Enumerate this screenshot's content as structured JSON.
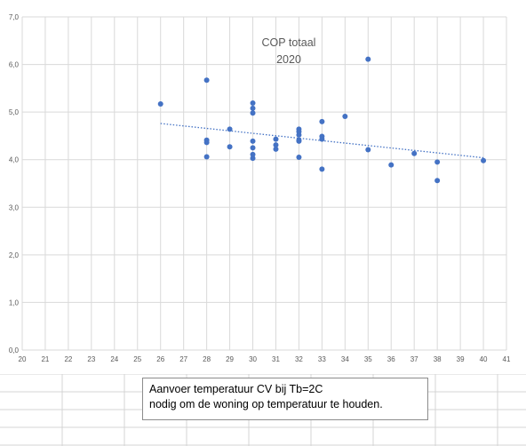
{
  "colors": {
    "marker": "#4472c4",
    "trendline": "#4472c4",
    "gridline": "#d9d9d9",
    "axis_text": "#595959",
    "sheet_grid": "#d4d4d4"
  },
  "chart_data": {
    "type": "scatter",
    "title": "COP totaal",
    "subtitle": "2020",
    "xlim": [
      20,
      41
    ],
    "ylim": [
      0,
      7
    ],
    "x_ticks": [
      "20",
      "21",
      "22",
      "23",
      "24",
      "25",
      "26",
      "27",
      "28",
      "29",
      "30",
      "31",
      "32",
      "33",
      "34",
      "35",
      "36",
      "37",
      "38",
      "39",
      "40",
      "41"
    ],
    "y_ticks": [
      "0,0",
      "1,0",
      "2,0",
      "3,0",
      "4,0",
      "5,0",
      "6,0",
      "7,0"
    ],
    "grid": true,
    "legend": "none",
    "series": [
      {
        "marker": "circle",
        "points": [
          [
            26,
            5.17
          ],
          [
            28,
            5.67
          ],
          [
            28,
            4.41
          ],
          [
            28,
            4.36
          ],
          [
            28,
            4.06
          ],
          [
            29,
            4.64
          ],
          [
            29,
            4.27
          ],
          [
            30,
            5.19
          ],
          [
            30,
            5.08
          ],
          [
            30,
            4.98
          ],
          [
            30,
            4.39
          ],
          [
            30,
            4.25
          ],
          [
            30,
            4.11
          ],
          [
            30,
            4.03
          ],
          [
            31,
            4.43
          ],
          [
            31,
            4.31
          ],
          [
            31,
            4.22
          ],
          [
            32,
            4.64
          ],
          [
            32,
            4.59
          ],
          [
            32,
            4.52
          ],
          [
            32,
            4.41
          ],
          [
            32,
            4.39
          ],
          [
            32,
            4.05
          ],
          [
            33,
            4.8
          ],
          [
            33,
            4.49
          ],
          [
            33,
            4.43
          ],
          [
            33,
            3.8
          ],
          [
            34,
            4.91
          ],
          [
            35,
            6.11
          ],
          [
            35,
            4.21
          ],
          [
            36,
            3.89
          ],
          [
            37,
            4.13
          ],
          [
            38,
            3.95
          ],
          [
            38,
            3.56
          ],
          [
            40,
            3.98
          ]
        ]
      }
    ],
    "trendline": {
      "type": "linear",
      "style": "dotted",
      "x_range": [
        26,
        40
      ],
      "y_start": 4.76,
      "y_end": 4.04
    }
  },
  "caption": {
    "line1": "Aanvoer temperatuur CV bij Tb=2C",
    "line2": "nodig om de woning op temperatuur te houden."
  }
}
